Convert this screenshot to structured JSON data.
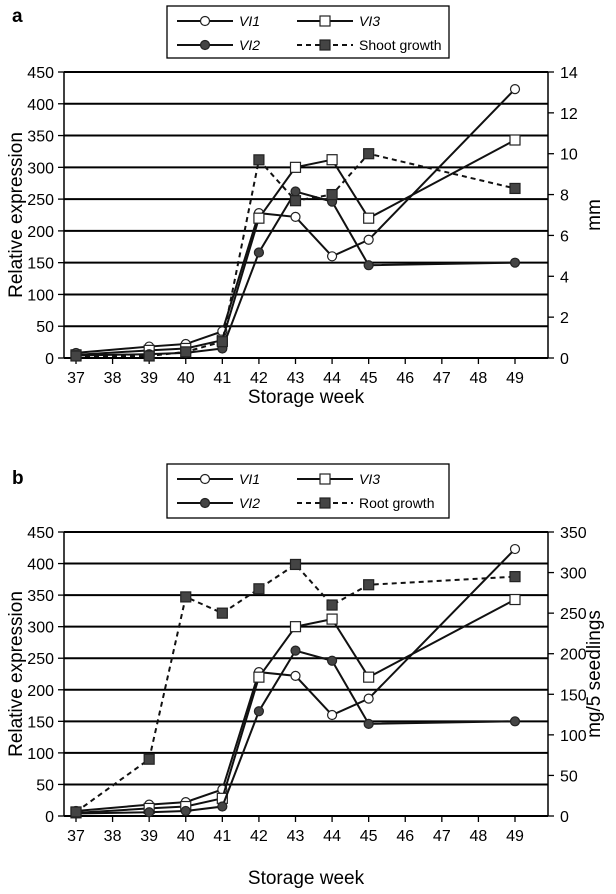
{
  "chart_data": [
    {
      "panel": "a",
      "type": "line",
      "xlabel": "Storage week",
      "ylabel": "Relative expression",
      "y2label": "mm",
      "x_ticks": [
        37,
        38,
        39,
        40,
        41,
        42,
        43,
        44,
        45,
        46,
        47,
        48,
        49
      ],
      "ylim": [
        0,
        450
      ],
      "y_ticks": [
        0,
        50,
        100,
        150,
        200,
        250,
        300,
        350,
        400,
        450
      ],
      "y2lim": [
        0,
        14
      ],
      "y2_ticks": [
        0,
        2,
        4,
        6,
        8,
        10,
        12,
        14
      ],
      "grid": "horizontal",
      "legend": "top",
      "series": [
        {
          "name": "VI1",
          "axis": "left",
          "style": "open-circle-solid",
          "x": [
            37,
            39,
            40,
            41,
            42,
            43,
            44,
            45,
            49
          ],
          "y": [
            8,
            18,
            22,
            42,
            228,
            222,
            160,
            186,
            423
          ]
        },
        {
          "name": "VI3",
          "axis": "left",
          "style": "open-square-solid",
          "x": [
            37,
            39,
            40,
            41,
            42,
            43,
            44,
            45,
            49
          ],
          "y": [
            5,
            12,
            15,
            28,
            220,
            300,
            312,
            220,
            343
          ]
        },
        {
          "name": "VI2",
          "axis": "left",
          "style": "filled-circle-solid",
          "x": [
            37,
            39,
            40,
            41,
            42,
            43,
            44,
            45,
            49
          ],
          "y": [
            4,
            6,
            8,
            15,
            166,
            262,
            246,
            146,
            150
          ]
        },
        {
          "name": "Shoot growth",
          "axis": "right",
          "style": "filled-square-dashed",
          "x": [
            37,
            39,
            40,
            41,
            42,
            43,
            44,
            45,
            49
          ],
          "y": [
            0.1,
            0.1,
            0.3,
            0.8,
            9.7,
            7.7,
            8.0,
            10.0,
            8.3
          ]
        }
      ]
    },
    {
      "panel": "b",
      "type": "line",
      "xlabel": "Storage week",
      "ylabel": "Relative expression",
      "y2label": "mg/5 seedlings",
      "x_ticks": [
        37,
        38,
        39,
        40,
        41,
        42,
        43,
        44,
        45,
        46,
        47,
        48,
        49
      ],
      "ylim": [
        0,
        450
      ],
      "y_ticks": [
        0,
        50,
        100,
        150,
        200,
        250,
        300,
        350,
        400,
        450
      ],
      "y2lim": [
        0,
        350
      ],
      "y2_ticks": [
        0,
        50,
        100,
        150,
        200,
        250,
        300,
        350
      ],
      "grid": "horizontal",
      "legend": "top",
      "series": [
        {
          "name": "VI1",
          "axis": "left",
          "style": "open-circle-solid",
          "x": [
            37,
            39,
            40,
            41,
            42,
            43,
            44,
            45,
            49
          ],
          "y": [
            8,
            18,
            22,
            42,
            228,
            222,
            160,
            186,
            423
          ]
        },
        {
          "name": "VI3",
          "axis": "left",
          "style": "open-square-solid",
          "x": [
            37,
            39,
            40,
            41,
            42,
            43,
            44,
            45,
            49
          ],
          "y": [
            5,
            12,
            15,
            28,
            220,
            300,
            312,
            220,
            343
          ]
        },
        {
          "name": "VI2",
          "axis": "left",
          "style": "filled-circle-solid",
          "x": [
            37,
            39,
            40,
            41,
            42,
            43,
            44,
            45,
            49
          ],
          "y": [
            4,
            6,
            8,
            15,
            166,
            262,
            246,
            146,
            150
          ]
        },
        {
          "name": "Root growth",
          "axis": "right",
          "style": "filled-square-dashed",
          "x": [
            37,
            39,
            40,
            41,
            42,
            43,
            44,
            45,
            49
          ],
          "y": [
            5,
            70,
            270,
            250,
            280,
            310,
            260,
            285,
            295
          ]
        }
      ]
    }
  ]
}
